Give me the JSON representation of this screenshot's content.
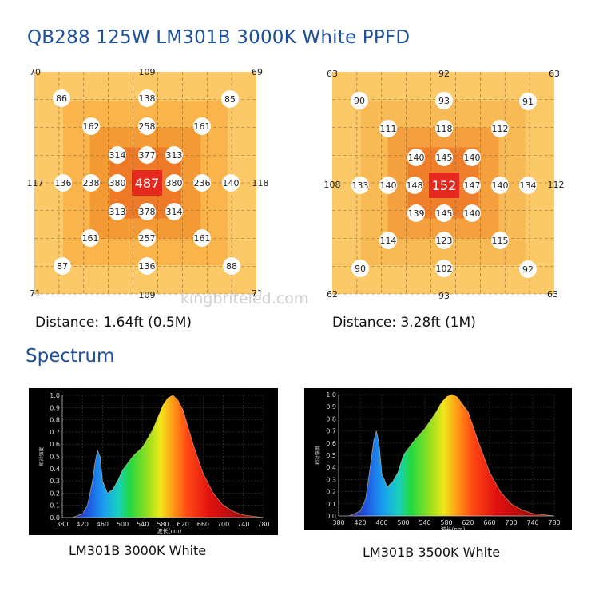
{
  "title": "QB288 125W LM301B 3000K White PPFD",
  "watermark": "kingbriteled.com",
  "ppfd": {
    "left": {
      "distance_label": "Distance: 1.64ft (0.5M)",
      "corners": {
        "tl": "70",
        "tr": "69",
        "bl": "71",
        "br": "71"
      },
      "top_mid": "109",
      "bottom_mid": "109",
      "left_mid": "117",
      "right_mid": "118",
      "r86": "86",
      "r85": "85",
      "r87": "87",
      "r88": "88",
      "n138": "138",
      "n136b": "136",
      "r162": "162",
      "r258": "258",
      "r161a": "161",
      "r314a": "314",
      "r377": "377",
      "r313a": "313",
      "r136": "136",
      "r238": "238",
      "r380a": "380",
      "center": "487",
      "r380b": "380",
      "r236": "236",
      "r140": "140",
      "r313b": "313",
      "r378": "378",
      "r314b": "314",
      "r161b": "161",
      "r257": "257",
      "r161c": "161"
    },
    "right": {
      "distance_label": "Distance: 3.28ft (1M)",
      "corners": {
        "tl": "63",
        "tr": "63",
        "bl": "62",
        "br": "63"
      },
      "top_mid": "92",
      "bottom_mid": "93",
      "left_mid": "108",
      "right_mid": "112",
      "r90a": "90",
      "r93": "93",
      "r91": "91",
      "r111": "111",
      "r118": "118",
      "r112": "112",
      "r140a": "140",
      "r145a": "145",
      "r140b": "140",
      "r133": "133",
      "r140c": "140",
      "r148": "148",
      "center": "152",
      "r147": "147",
      "r140d": "140",
      "r134": "134",
      "r139": "139",
      "r145b": "145",
      "r140e": "140",
      "r114": "114",
      "r123": "123",
      "r115": "115",
      "r90b": "90",
      "r102": "102",
      "r92": "92"
    }
  },
  "spectrum_title": "Spectrum",
  "chart_data": [
    {
      "type": "area",
      "caption": "LM301B 3000K White",
      "x_ticks": [
        "380",
        "420",
        "460",
        "500",
        "540",
        "580",
        "620",
        "660",
        "700",
        "740",
        "780"
      ],
      "y_ticks": [
        "0.0",
        "0.1",
        "0.2",
        "0.3",
        "0.4",
        "0.5",
        "0.6",
        "0.7",
        "0.8",
        "0.9",
        "1.0"
      ],
      "xlabel": "波长(nm)",
      "ylabel": "相对强度",
      "xlim": [
        380,
        780
      ],
      "ylim": [
        0,
        1.0
      ],
      "x": [
        400,
        420,
        430,
        440,
        445,
        450,
        455,
        460,
        470,
        480,
        490,
        500,
        520,
        540,
        560,
        580,
        590,
        600,
        610,
        620,
        640,
        660,
        680,
        700,
        720,
        740,
        760,
        780
      ],
      "y": [
        0.0,
        0.03,
        0.1,
        0.3,
        0.45,
        0.55,
        0.5,
        0.3,
        0.2,
        0.23,
        0.3,
        0.39,
        0.5,
        0.58,
        0.72,
        0.92,
        0.98,
        1.0,
        0.96,
        0.88,
        0.6,
        0.36,
        0.2,
        0.1,
        0.05,
        0.02,
        0.01,
        0.0
      ]
    },
    {
      "type": "area",
      "caption": "LM301B 3500K White",
      "x_ticks": [
        "380",
        "420",
        "460",
        "500",
        "540",
        "580",
        "620",
        "660",
        "700",
        "740",
        "780"
      ],
      "y_ticks": [
        "0.0",
        "0.1",
        "0.2",
        "0.3",
        "0.4",
        "0.5",
        "0.6",
        "0.7",
        "0.8",
        "0.9",
        "1.0"
      ],
      "xlabel": "波长(nm)",
      "ylabel": "相对强度",
      "xlim": [
        380,
        780
      ],
      "ylim": [
        0,
        1.0
      ],
      "x": [
        400,
        420,
        430,
        440,
        445,
        450,
        455,
        460,
        470,
        480,
        490,
        500,
        520,
        540,
        560,
        570,
        580,
        590,
        600,
        620,
        640,
        660,
        680,
        700,
        720,
        740,
        760,
        780
      ],
      "y": [
        0.0,
        0.04,
        0.14,
        0.45,
        0.62,
        0.7,
        0.6,
        0.35,
        0.24,
        0.28,
        0.36,
        0.5,
        0.62,
        0.72,
        0.85,
        0.93,
        0.98,
        1.0,
        0.98,
        0.86,
        0.6,
        0.36,
        0.2,
        0.1,
        0.05,
        0.02,
        0.01,
        0.0
      ]
    }
  ]
}
